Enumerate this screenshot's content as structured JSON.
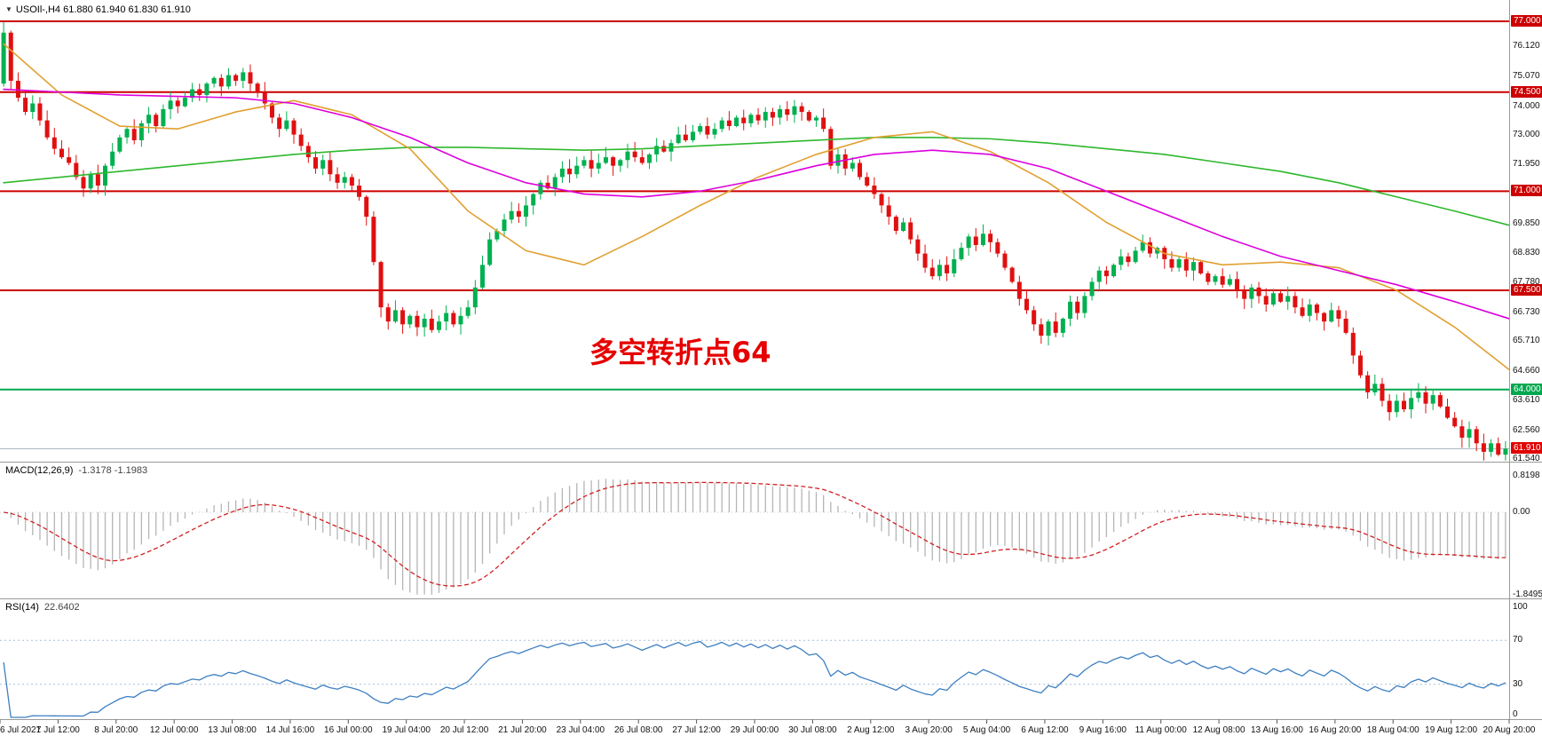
{
  "header": {
    "dropdown_icon": "▼",
    "symbol_info": "USOIl-,H4 61.880 61.940 61.830 61.910"
  },
  "annotation": {
    "text": "多空转折点64",
    "color": "#e60000"
  },
  "colors": {
    "candle_up": "#00b050",
    "candle_down": "#e01010",
    "ma_green": "#2eb82e",
    "ma_orange": "#e0a030",
    "ma_magenta": "#dd00dd",
    "macd_hist": "#b5b5b5",
    "macd_signal": "#d02020",
    "rsi_line": "#3e7fc1",
    "rsi_level": "#a8c0d8",
    "separator": "#9a9a9a",
    "current_price_line": "#a9b4bd",
    "hline_red": "#cc0000",
    "hline_green": "#00a84f"
  },
  "hlines": [
    {
      "price": 77.0,
      "label": "77.000",
      "color": "#cc0000"
    },
    {
      "price": 74.5,
      "label": "74.500",
      "color": "#cc0000"
    },
    {
      "price": 71.0,
      "label": "71.000",
      "color": "#cc0000"
    },
    {
      "price": 67.5,
      "label": "67.500",
      "color": "#cc0000"
    },
    {
      "price": 64.0,
      "label": "64.000",
      "color": "#00a84f"
    }
  ],
  "current_price": {
    "value": 61.91,
    "label": "61.910",
    "badge_color": "#e00000"
  },
  "price_axis_ticks": [
    {
      "price": 76.12,
      "label": "76.120"
    },
    {
      "price": 75.07,
      "label": "75.070"
    },
    {
      "price": 74.0,
      "label": "74.000"
    },
    {
      "price": 73.0,
      "label": "73.000"
    },
    {
      "price": 71.95,
      "label": "71.950"
    },
    {
      "price": 69.85,
      "label": "69.850"
    },
    {
      "price": 68.83,
      "label": "68.830"
    },
    {
      "price": 67.78,
      "label": "67.780"
    },
    {
      "price": 66.73,
      "label": "66.730"
    },
    {
      "price": 65.71,
      "label": "65.710"
    },
    {
      "price": 64.66,
      "label": "64.660"
    },
    {
      "price": 63.61,
      "label": "63.610"
    },
    {
      "price": 62.56,
      "label": "62.560"
    },
    {
      "price": 61.54,
      "label": "61.540"
    }
  ],
  "chart_data": {
    "type": "candlestick",
    "symbol": "USOIl-",
    "timeframe": "H4",
    "title": "USOIl-,H4 61.880 61.940 61.830 61.910",
    "price_axis_range": [
      61.4,
      77.8
    ],
    "open_first": 74.8,
    "closes": [
      76.6,
      74.9,
      74.3,
      73.8,
      74.1,
      73.5,
      72.9,
      72.5,
      72.2,
      72.0,
      71.5,
      71.1,
      71.6,
      71.2,
      71.9,
      72.4,
      72.9,
      73.2,
      72.8,
      73.4,
      73.7,
      73.3,
      73.9,
      74.2,
      74.0,
      74.3,
      74.6,
      74.4,
      74.8,
      75.0,
      74.7,
      75.1,
      74.9,
      75.2,
      74.8,
      74.5,
      74.1,
      73.6,
      73.2,
      73.5,
      73.0,
      72.6,
      72.2,
      71.8,
      72.1,
      71.6,
      71.3,
      71.5,
      71.2,
      70.8,
      70.1,
      68.5,
      66.9,
      66.4,
      66.8,
      66.3,
      66.6,
      66.2,
      66.5,
      66.1,
      66.4,
      66.7,
      66.3,
      66.6,
      66.9,
      67.6,
      68.4,
      69.3,
      69.6,
      70.0,
      70.3,
      70.1,
      70.5,
      70.9,
      71.3,
      71.1,
      71.5,
      71.8,
      71.6,
      71.9,
      72.1,
      71.8,
      72.0,
      72.2,
      71.9,
      72.1,
      72.4,
      72.2,
      72.0,
      72.3,
      72.6,
      72.4,
      72.7,
      73.0,
      72.8,
      73.1,
      73.3,
      73.0,
      73.2,
      73.5,
      73.3,
      73.6,
      73.4,
      73.7,
      73.5,
      73.8,
      73.6,
      73.9,
      73.7,
      74.0,
      73.8,
      73.5,
      73.6,
      73.2,
      71.9,
      72.3,
      71.8,
      72.0,
      71.5,
      71.2,
      70.9,
      70.5,
      70.1,
      69.6,
      69.9,
      69.3,
      68.8,
      68.3,
      68.0,
      68.4,
      68.1,
      68.6,
      69.0,
      69.4,
      69.1,
      69.5,
      69.2,
      68.8,
      68.3,
      67.8,
      67.2,
      66.8,
      66.3,
      65.9,
      66.4,
      66.0,
      66.5,
      67.1,
      66.7,
      67.3,
      67.8,
      68.2,
      68.0,
      68.4,
      68.7,
      68.5,
      68.9,
      69.2,
      68.8,
      69.0,
      68.6,
      68.3,
      68.6,
      68.2,
      68.5,
      68.1,
      67.8,
      68.0,
      67.7,
      67.9,
      67.5,
      67.2,
      67.6,
      67.3,
      67.0,
      67.4,
      67.1,
      67.3,
      66.9,
      66.6,
      67.0,
      66.7,
      66.4,
      66.8,
      66.5,
      66.0,
      65.2,
      64.5,
      63.9,
      64.2,
      63.6,
      63.2,
      63.6,
      63.3,
      63.7,
      63.9,
      63.5,
      63.8,
      63.4,
      63.0,
      62.7,
      62.3,
      62.6,
      62.1,
      61.8,
      62.1,
      61.7,
      61.91
    ],
    "x_labels": [
      "6 Jul 2021",
      "7 Jul 12:00",
      "8 Jul 20:00",
      "12 Jul 00:00",
      "13 Jul 08:00",
      "14 Jul 16:00",
      "16 Jul 00:00",
      "19 Jul 04:00",
      "20 Jul 12:00",
      "21 Jul 20:00",
      "23 Jul 04:00",
      "26 Jul 08:00",
      "27 Jul 12:00",
      "29 Jul 00:00",
      "30 Jul 08:00",
      "2 Aug 12:00",
      "3 Aug 20:00",
      "5 Aug 04:00",
      "6 Aug 12:00",
      "9 Aug 16:00",
      "11 Aug 00:00",
      "12 Aug 08:00",
      "13 Aug 16:00",
      "16 Aug 20:00",
      "18 Aug 04:00",
      "19 Aug 12:00",
      "20 Aug 20:00"
    ],
    "moving_averages": {
      "anchor_step": 8,
      "green_slow": [
        71.3,
        71.5,
        71.7,
        71.9,
        72.1,
        72.3,
        72.45,
        72.55,
        72.55,
        72.5,
        72.45,
        72.5,
        72.6,
        72.7,
        72.8,
        72.9,
        72.9,
        72.85,
        72.7,
        72.5,
        72.3,
        72.0,
        71.7,
        71.3,
        70.8,
        70.3,
        69.8
      ],
      "orange_mid": [
        76.2,
        74.4,
        73.3,
        73.2,
        73.8,
        74.2,
        73.7,
        72.5,
        70.3,
        68.9,
        68.4,
        69.4,
        70.5,
        71.5,
        72.3,
        72.9,
        73.1,
        72.4,
        71.3,
        69.9,
        68.8,
        68.4,
        68.5,
        68.3,
        67.5,
        66.2,
        64.7
      ],
      "magenta_fast": [
        74.6,
        74.5,
        74.4,
        74.35,
        74.3,
        74.1,
        73.6,
        72.9,
        72.0,
        71.3,
        70.9,
        70.8,
        71.0,
        71.4,
        71.9,
        72.3,
        72.45,
        72.3,
        71.8,
        71.0,
        70.2,
        69.4,
        68.7,
        68.2,
        67.7,
        67.1,
        66.5
      ]
    },
    "macd": {
      "label": "MACD(12,26,9)",
      "values": "-1.3178 -1.1983",
      "params": [
        12,
        26,
        9
      ],
      "axis_ticks": [
        {
          "v": 0.8198,
          "label": "0.8198"
        },
        {
          "v": 0,
          "label": "0.00"
        },
        {
          "v": -1.8495,
          "label": "-1.8495"
        }
      ]
    },
    "rsi": {
      "label": "RSI(14)",
      "value": "22.6402",
      "period": 14,
      "levels": [
        70,
        30
      ],
      "axis_ticks": [
        {
          "v": 100,
          "label": "100"
        },
        {
          "v": 70,
          "label": "70"
        },
        {
          "v": 30,
          "label": "30"
        },
        {
          "v": 0,
          "label": "0"
        }
      ]
    }
  }
}
